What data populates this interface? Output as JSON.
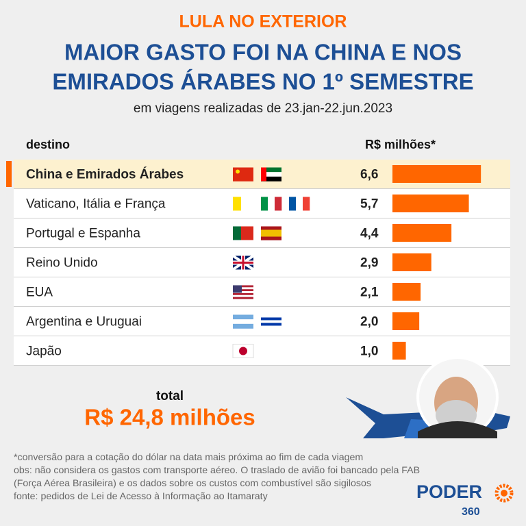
{
  "chart_data": {
    "type": "bar",
    "orientation": "horizontal",
    "kicker": "LULA NO EXTERIOR",
    "title_lines": [
      "MAIOR GASTO FOI NA CHINA E NOS",
      "EMIRADOS ÁRABES NO 1º SEMESTRE"
    ],
    "subtitle": "em viagens realizadas de 23.jan-22.jun.2023",
    "category_header": "destino",
    "value_header": "R$ milhões*",
    "categories": [
      "China e Emirados Árabes",
      "Vaticano, Itália e França",
      "Portugal e Espanha",
      "Reino Unido",
      "EUA",
      "Argentina e Uruguai",
      "Japão"
    ],
    "values": [
      6.6,
      5.7,
      4.4,
      2.9,
      2.1,
      2.0,
      1.0
    ],
    "value_labels": [
      "6,6",
      "5,7",
      "4,4",
      "2,9",
      "2,1",
      "2,0",
      "1,0"
    ],
    "color": "#ff6600",
    "xlim": [
      0,
      7
    ],
    "total_label": "total",
    "total": "R$ 24,8 milhões",
    "notes": [
      "*conversão para a cotação do dólar na data mais próxima ao fim de cada viagem",
      "obs: não considera os gastos com transporte aéreo. O traslado de avião foi bancado pela FAB",
      "(Força Aérea Brasileira) e os dados sobre os custos com combustível são sigilosos",
      "fonte: pedidos de Lei de Acesso à Informação ao Itamaraty"
    ],
    "logo": "PODER",
    "logo_sub": "360"
  }
}
